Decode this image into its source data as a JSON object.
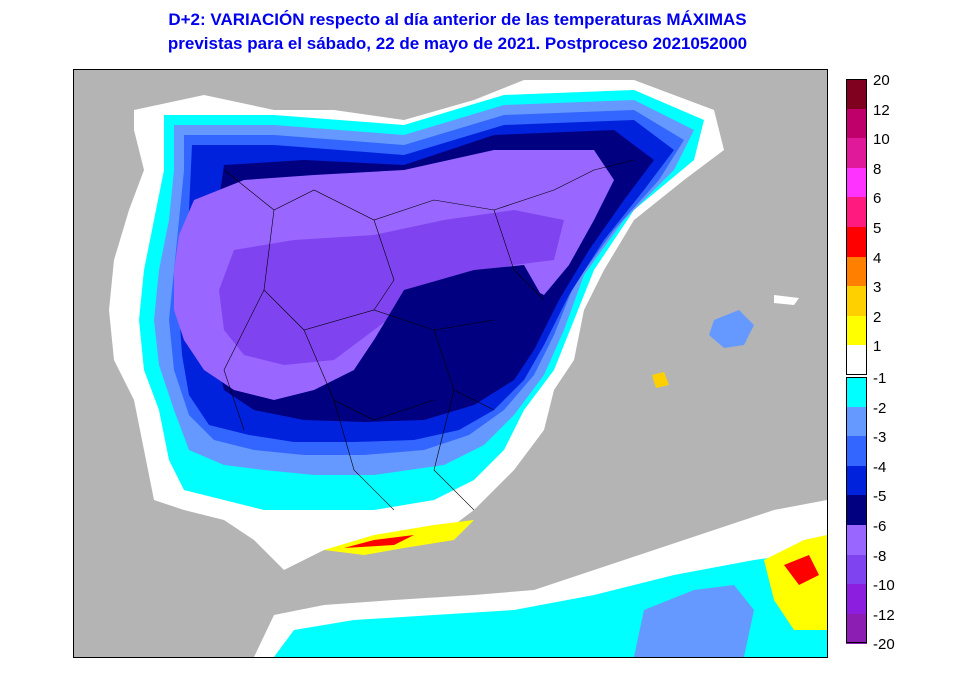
{
  "title": {
    "line1": "D+2:  VARIACIÓN respecto al día anterior de las temperaturas MÁXIMAS",
    "line2": "previstas para el sábado, 22 de mayo de 2021. Postproceso 2021052000"
  },
  "colors": {
    "sea": "#b4b4b4",
    "title": "#0000ee"
  },
  "legend_positive": [
    {
      "label": "20",
      "color": "#800020"
    },
    {
      "label": "12",
      "color": "#c0006a"
    },
    {
      "label": "10",
      "color": "#e0189a"
    },
    {
      "label": "8",
      "color": "#ff33ff"
    },
    {
      "label": "6",
      "color": "#ff1a80"
    },
    {
      "label": "5",
      "color": "#ff0000"
    },
    {
      "label": "4",
      "color": "#ff8000"
    },
    {
      "label": "3",
      "color": "#ffd000"
    },
    {
      "label": "2",
      "color": "#ffff00"
    },
    {
      "label": "1",
      "color": "#ffffff"
    }
  ],
  "legend_negative": [
    {
      "label": "-1",
      "color": "#00ffff"
    },
    {
      "label": "-2",
      "color": "#6699ff"
    },
    {
      "label": "-3",
      "color": "#3366ff"
    },
    {
      "label": "-4",
      "color": "#0022dd"
    },
    {
      "label": "-5",
      "color": "#000080"
    },
    {
      "label": "-6",
      "color": "#9966ff"
    },
    {
      "label": "-8",
      "color": "#7f44f0"
    },
    {
      "label": "-10",
      "color": "#8c1ee0"
    },
    {
      "label": "-12",
      "color": "#8c1eb4"
    },
    {
      "label": "-20",
      "color": ""
    }
  ]
}
